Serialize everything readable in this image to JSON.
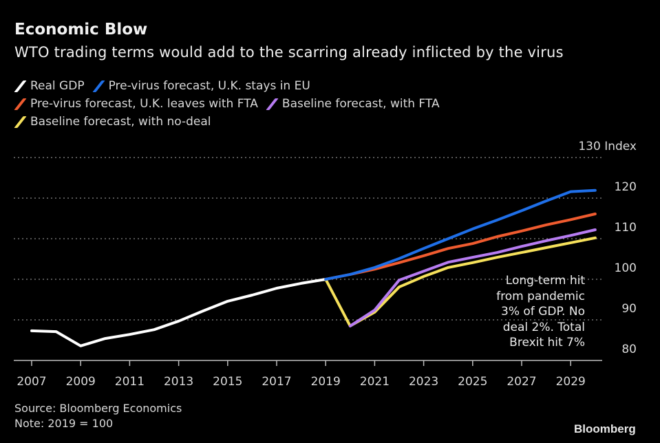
{
  "header": {
    "title": "Economic Blow",
    "subtitle": "WTO trading terms would add to the scarring already inflicted by the virus"
  },
  "footer": {
    "source": "Source: Bloomberg Economics",
    "note": "Note: 2019 = 100",
    "brand": "Bloomberg"
  },
  "chart_data": {
    "type": "line",
    "title": "Economic Blow",
    "subtitle": "WTO trading terms would add to the scarring already inflicted by the virus",
    "xlabel": "",
    "ylabel": "Index",
    "y_unit_label": "Index",
    "ylim": [
      80,
      130
    ],
    "xlim": [
      2007,
      2030
    ],
    "yticks": [
      80,
      90,
      100,
      110,
      120,
      130
    ],
    "xticks": [
      2007,
      2009,
      2011,
      2013,
      2015,
      2017,
      2019,
      2021,
      2023,
      2025,
      2027,
      2029
    ],
    "grid": true,
    "y_axis_side": "right",
    "legend_position": "top-left",
    "annotation": {
      "lines": [
        "Long-term hit",
        "from pandemic",
        "3% of GDP. No",
        "deal 2%. Total",
        "Brexit hit 7%"
      ]
    },
    "series": [
      {
        "name": "Real GDP",
        "color": "#ffffff",
        "x": [
          2007,
          2008,
          2009,
          2010,
          2011,
          2012,
          2013,
          2014,
          2015,
          2016,
          2017,
          2018,
          2019
        ],
        "values": [
          87.3,
          87.1,
          83.6,
          85.4,
          86.4,
          87.6,
          89.7,
          92.2,
          94.6,
          96.1,
          97.8,
          99.0,
          100
        ]
      },
      {
        "name": "Pre-virus forecast, U.K. stays in EU",
        "color": "#1f6fe8",
        "x": [
          2019,
          2020,
          2021,
          2022,
          2023,
          2024,
          2025,
          2026,
          2027,
          2028,
          2029,
          2030
        ],
        "values": [
          100,
          101.2,
          102.9,
          105.1,
          107.6,
          110.0,
          112.4,
          114.6,
          116.9,
          119.3,
          121.6,
          121.9
        ]
      },
      {
        "name": "Pre-virus forecast, U.K. leaves with FTA",
        "color": "#ef5b2f",
        "x": [
          2019,
          2020,
          2021,
          2022,
          2023,
          2024,
          2025,
          2026,
          2027,
          2028,
          2029,
          2030
        ],
        "values": [
          100,
          101.2,
          102.5,
          104.1,
          105.8,
          107.6,
          108.8,
          110.5,
          111.9,
          113.4,
          114.7,
          116.1
        ]
      },
      {
        "name": "Baseline forecast, with FTA",
        "color": "#b77cf2",
        "x": [
          2020,
          2021,
          2022,
          2023,
          2024,
          2025,
          2026,
          2027,
          2028,
          2029,
          2030
        ],
        "values": [
          88.5,
          92.4,
          99.8,
          102.0,
          104.2,
          105.4,
          106.6,
          108.1,
          109.5,
          110.8,
          112.2
        ]
      },
      {
        "name": "Baseline forecast, with no-deal",
        "color": "#f5e05b",
        "x": [
          2019,
          2020,
          2021,
          2022,
          2023,
          2024,
          2025,
          2026,
          2027,
          2028,
          2029,
          2030
        ],
        "values": [
          100,
          88.5,
          91.9,
          98.1,
          100.7,
          102.9,
          104.1,
          105.4,
          106.6,
          107.8,
          109.0,
          110.2
        ]
      }
    ]
  }
}
